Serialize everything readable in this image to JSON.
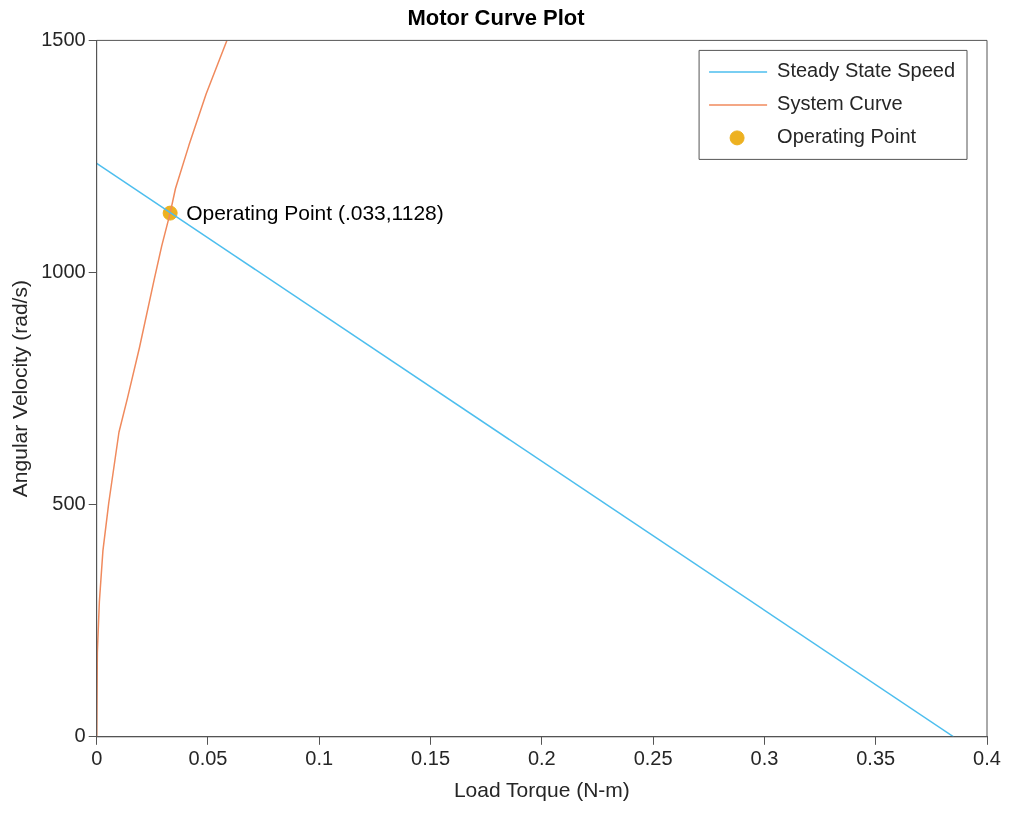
{
  "chart_data": {
    "type": "line",
    "title": "Motor Curve Plot",
    "xlabel": "Load Torque (N-m)",
    "ylabel": "Angular Velocity (rad/s)",
    "series": [
      {
        "name": "Steady State Speed",
        "color": "#4dbeee",
        "x": [
          0,
          0.385
        ],
        "values": [
          1235,
          0
        ]
      },
      {
        "name": "System Curve",
        "color": "#f08a5d",
        "x": [
          0,
          0.0003,
          0.0012,
          0.0028,
          0.0054,
          0.01,
          0.0138,
          0.0192,
          0.0258,
          0.0292,
          0.033,
          0.0354,
          0.0415,
          0.0492,
          0.0585
        ],
        "values": [
          0,
          182,
          291,
          401,
          503,
          656,
          729,
          838,
          984,
          1057,
          1128,
          1181,
          1275,
          1385,
          1500
        ]
      },
      {
        "name": "Operating Point",
        "type": "scatter",
        "marker": "circle",
        "color": "#edb120",
        "x": [
          0.033
        ],
        "values": [
          1128
        ]
      }
    ],
    "annotations": [
      {
        "text": "Operating Point (.033,1128)",
        "x": 0.033,
        "y": 1128
      }
    ],
    "xlim": [
      0,
      0.4
    ],
    "xticks": [
      0,
      0.05,
      0.1,
      0.15,
      0.2,
      0.25,
      0.3,
      0.35,
      0.4
    ],
    "ylim": [
      0,
      1500
    ],
    "yticks": [
      0,
      500,
      1000,
      1500
    ],
    "legend": "top right",
    "marker": "none"
  }
}
